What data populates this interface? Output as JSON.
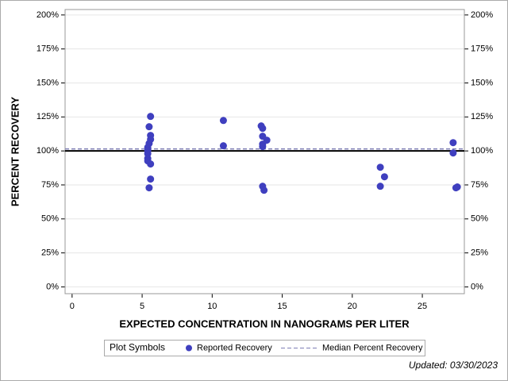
{
  "chart_data": {
    "type": "scatter",
    "x_label": "EXPECTED CONCENTRATION IN NANOGRAMS PER LITER",
    "y_label": "PERCENT RECOVERY",
    "series": [
      {
        "name": "Reported Recovery",
        "color": "#3f3fbf",
        "x": [
          5.6,
          5.5,
          5.6,
          5.6,
          5.5,
          5.4,
          5.4,
          5.4,
          5.4,
          5.4,
          5.6,
          5.6,
          5.5,
          10.8,
          10.8,
          13.5,
          13.6,
          13.6,
          13.6,
          13.6,
          13.9,
          13.6,
          13.7,
          22.0,
          22.3,
          22.0,
          27.2,
          27.2,
          27.5,
          27.4
        ],
        "y": [
          125.4,
          117.8,
          111.4,
          108.5,
          105.5,
          102.6,
          100.3,
          98,
          94.5,
          92.7,
          90.4,
          79.3,
          72.9,
          122.4,
          103.8,
          118.4,
          116.6,
          110.8,
          105,
          103.2,
          107.9,
          74,
          71.1,
          88,
          81,
          74,
          106.1,
          98.5,
          73.5,
          72.9
        ]
      }
    ],
    "median": {
      "name": "Median Percent Recovery",
      "value": 101.5,
      "color": "#7f7fb5"
    },
    "reference_line": 100,
    "legend_title": "Plot Symbols",
    "footer": "Updated: 03/30/2023",
    "xlim": [
      -0.5,
      28
    ],
    "xticks": [
      0,
      5,
      10,
      15,
      20,
      25
    ],
    "ylim": [
      -5,
      204
    ],
    "yticks": [
      {
        "value": 0,
        "label": "0%"
      },
      {
        "value": 25,
        "label": "25%"
      },
      {
        "value": 50,
        "label": "50%"
      },
      {
        "value": 75,
        "label": "75%"
      },
      {
        "value": 100,
        "label": "100%"
      },
      {
        "value": 125,
        "label": "125%"
      },
      {
        "value": 150,
        "label": "150%"
      },
      {
        "value": 175,
        "label": "175%"
      },
      {
        "value": 200,
        "label": "200%"
      }
    ],
    "grid": true
  }
}
